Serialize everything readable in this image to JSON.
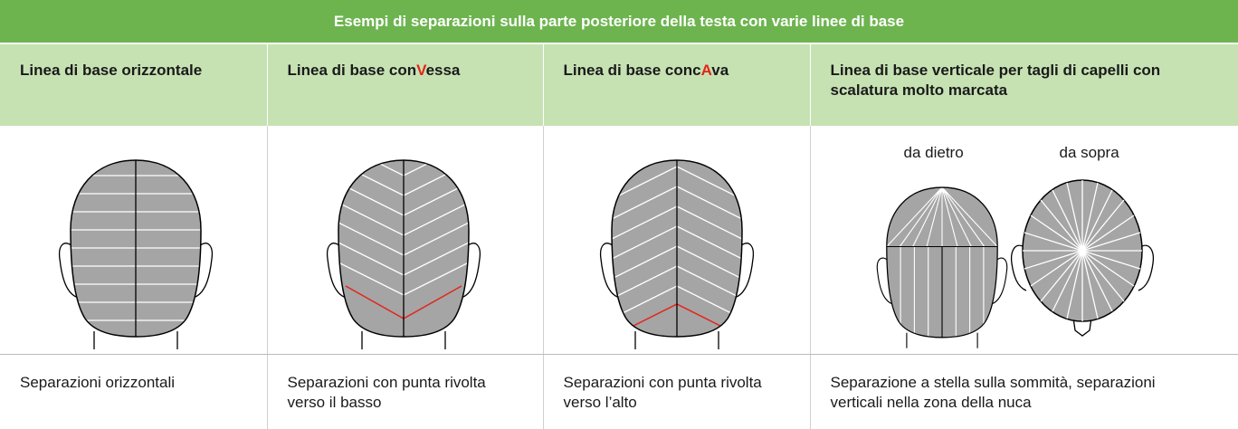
{
  "table": {
    "title": "Esempi di separazioni sulla parte posteriore della testa con varie linee di base",
    "headers": [
      [
        {
          "text": "Linea di base orizzontale"
        }
      ],
      [
        {
          "text": "Linea di base con"
        },
        {
          "text": "V",
          "color": "#e5231b"
        },
        {
          "text": "essa"
        }
      ],
      [
        {
          "text": "Linea di base conc"
        },
        {
          "text": "A",
          "color": "#e5231b"
        },
        {
          "text": "va"
        }
      ],
      [
        {
          "text": "Linea di base verticale per tagli di capelli con scalatura molto marcata"
        }
      ]
    ],
    "view_labels": [
      "da dietro",
      "da sopra"
    ],
    "captions": [
      "Separazioni orizzontali",
      "Separazioni con punta rivolta verso il basso",
      "Separazioni con punta rivolta verso l’alto",
      "Separazione a stella sulla sommità, separazioni verticali nella zona della nuca"
    ]
  }
}
